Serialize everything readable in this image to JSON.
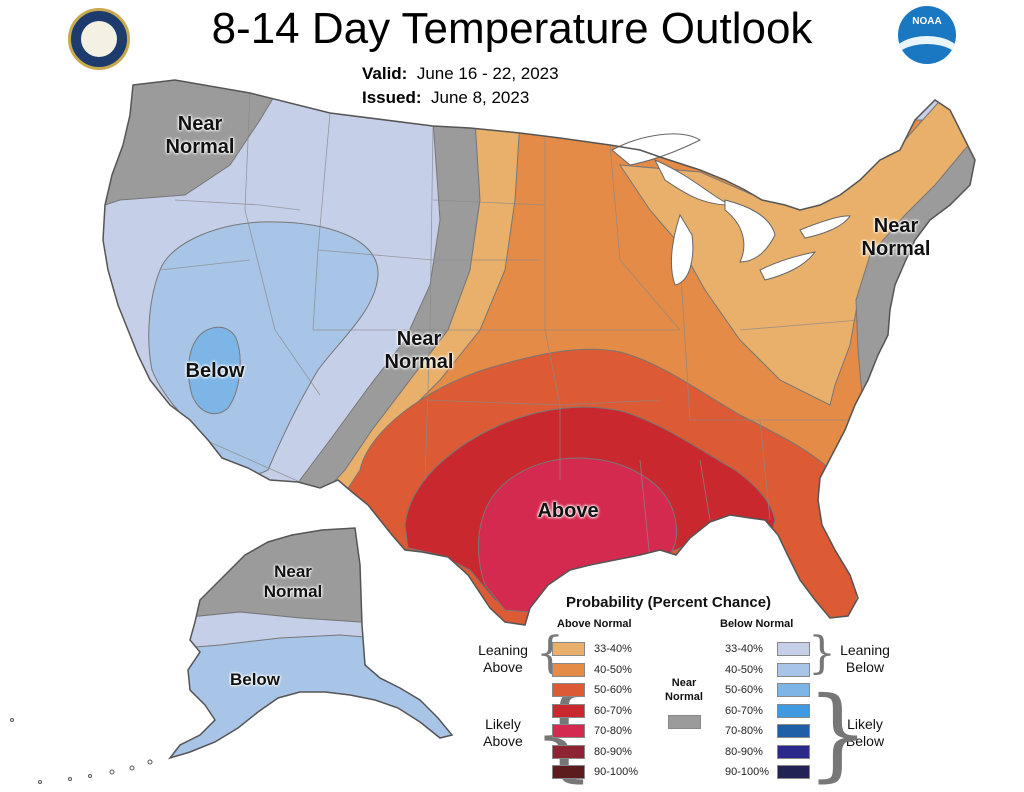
{
  "header": {
    "title": "8-14 Day Temperature Outlook",
    "valid_label": "Valid:",
    "valid_value": "June 16 - 22, 2023",
    "issued_label": "Issued:",
    "issued_value": "June 8, 2023",
    "left_logo_icon": "doc-seal-icon",
    "right_logo_icon": "noaa-logo-icon",
    "right_logo_text": "NOAA"
  },
  "map": {
    "labels": {
      "northwest": "Near\nNormal",
      "southwest": "Below",
      "plains": "Near\nNormal",
      "northeast": "Near\nNormal",
      "south": "Above",
      "alaska_north": "Near\nNormal",
      "alaska_south": "Below"
    }
  },
  "legend": {
    "title": "Probability (Percent Chance)",
    "above_header": "Above Normal",
    "below_header": "Below Normal",
    "near_normal": "Near\nNormal",
    "near_color": "#9b9b9b",
    "above": [
      {
        "range": "33-40%",
        "color": "#e8b06a"
      },
      {
        "range": "40-50%",
        "color": "#e38b47"
      },
      {
        "range": "50-60%",
        "color": "#dc5a34"
      },
      {
        "range": "60-70%",
        "color": "#c9292e"
      },
      {
        "range": "70-80%",
        "color": "#d52a4f"
      },
      {
        "range": "80-90%",
        "color": "#8e2432"
      },
      {
        "range": "90-100%",
        "color": "#5c1b1d"
      }
    ],
    "below": [
      {
        "range": "33-40%",
        "color": "#c5cfe8"
      },
      {
        "range": "40-50%",
        "color": "#a8c4e6"
      },
      {
        "range": "50-60%",
        "color": "#7db5e6"
      },
      {
        "range": "60-70%",
        "color": "#3f9ae0"
      },
      {
        "range": "70-80%",
        "color": "#1e5fa8"
      },
      {
        "range": "80-90%",
        "color": "#2b2a8a"
      },
      {
        "range": "90-100%",
        "color": "#222255"
      }
    ],
    "leaning_above": "Leaning\nAbove",
    "likely_above": "Likely\nAbove",
    "leaning_below": "Leaning\nBelow",
    "likely_below": "Likely\nBelow"
  }
}
